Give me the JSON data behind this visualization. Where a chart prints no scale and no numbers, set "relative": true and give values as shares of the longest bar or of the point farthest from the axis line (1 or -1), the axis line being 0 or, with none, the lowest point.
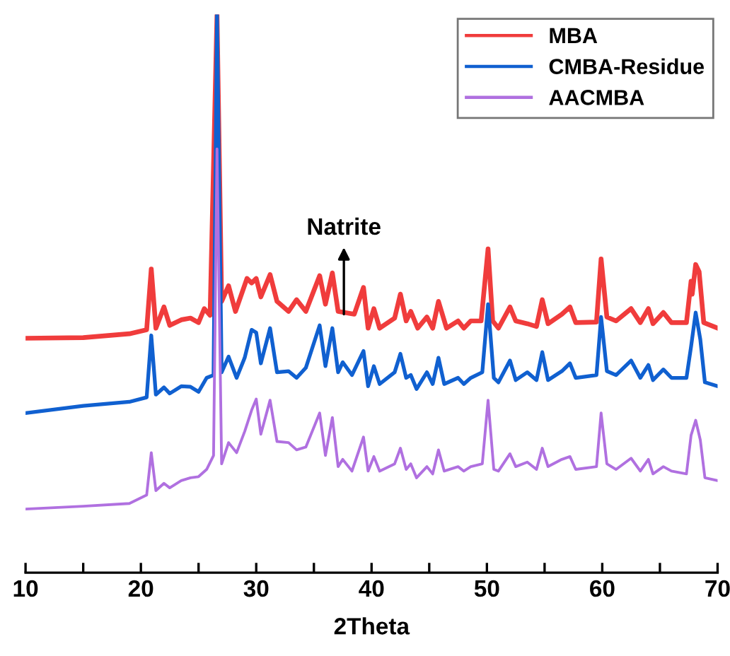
{
  "chart_data": {
    "type": "line",
    "relative": true,
    "xlabel": "2Theta",
    "xlim": [
      10,
      70
    ],
    "xticks": [
      10,
      {
        "value": 15,
        "label": null
      },
      20,
      {
        "value": 25,
        "label": null
      },
      30,
      {
        "value": 35,
        "label": null
      },
      40,
      {
        "value": 45,
        "label": null
      },
      50,
      {
        "value": 55,
        "label": null
      },
      60,
      {
        "value": 65,
        "label": null
      },
      70
    ],
    "legend": "top right",
    "grid": false,
    "marker": "none",
    "line_style": "solid",
    "annotations": [
      {
        "text": "Natrite",
        "x": 37.6,
        "y": 0.463
      }
    ],
    "series": [
      {
        "name": "MBA",
        "color": "#f03c3c",
        "x": [
          10,
          15,
          19,
          20.5,
          20.9,
          21.3,
          22,
          22.5,
          23.5,
          24.3,
          25,
          25.5,
          26,
          26.6,
          27,
          27.6,
          28.2,
          29.2,
          29.6,
          30,
          30.4,
          31.2,
          31.8,
          32.8,
          33.5,
          34.3,
          35.5,
          36,
          36.6,
          37.1,
          38.5,
          39.3,
          39.7,
          40.2,
          40.7,
          42,
          42.5,
          43,
          43.4,
          44,
          44.8,
          45.3,
          45.8,
          46.5,
          47.5,
          48,
          48.6,
          49.5,
          50.1,
          50.5,
          51,
          52,
          52.5,
          53.5,
          54.3,
          54.8,
          55.3,
          56.5,
          57.2,
          57.7,
          59.5,
          59.9,
          60.4,
          61.2,
          62.5,
          63.3,
          64,
          64.4,
          65.3,
          66,
          67.3,
          67.7,
          67.8,
          68.1,
          68.4,
          68.8,
          70
        ],
        "values": [
          0.42,
          0.421,
          0.428,
          0.435,
          0.544,
          0.438,
          0.476,
          0.443,
          0.453,
          0.456,
          0.448,
          0.473,
          0.461,
          1,
          0.486,
          0.514,
          0.468,
          0.527,
          0.519,
          0.527,
          0.494,
          0.534,
          0.486,
          0.468,
          0.489,
          0.468,
          0.532,
          0.481,
          0.537,
          0.468,
          0.463,
          0.511,
          0.438,
          0.473,
          0.438,
          0.456,
          0.499,
          0.451,
          0.468,
          0.438,
          0.458,
          0.438,
          0.486,
          0.438,
          0.451,
          0.438,
          0.451,
          0.451,
          0.58,
          0.451,
          0.438,
          0.476,
          0.451,
          0.446,
          0.441,
          0.489,
          0.446,
          0.463,
          0.476,
          0.448,
          0.449,
          0.562,
          0.458,
          0.451,
          0.473,
          0.448,
          0.473,
          0.446,
          0.466,
          0.448,
          0.448,
          0.522,
          0.499,
          0.552,
          0.539,
          0.448,
          0.438
        ]
      },
      {
        "name": "CMBA-Residue",
        "color": "#1060d0",
        "x": [
          10,
          15,
          19,
          20.5,
          20.9,
          21.3,
          22,
          22.5,
          23.5,
          24.3,
          25,
          25.7,
          26.3,
          26.6,
          27,
          27.6,
          28.3,
          29,
          29.6,
          30,
          30.4,
          31.2,
          31.8,
          32.8,
          33.5,
          34.3,
          35.5,
          36,
          36.6,
          37.1,
          37.5,
          38.3,
          39.3,
          39.7,
          40.2,
          40.7,
          42,
          42.5,
          43,
          43.4,
          43.9,
          44.8,
          45.3,
          45.8,
          46.3,
          47.5,
          48,
          48.6,
          49.6,
          50.1,
          50.6,
          51,
          52,
          52.5,
          53.5,
          54.3,
          54.8,
          55.3,
          56.5,
          57.2,
          57.7,
          59.5,
          59.9,
          60.4,
          61.2,
          62.5,
          63.3,
          64,
          64.4,
          65.3,
          66,
          67.3,
          67.7,
          68.1,
          68.5,
          68.9,
          70
        ],
        "values": [
          0.286,
          0.299,
          0.306,
          0.314,
          0.425,
          0.319,
          0.332,
          0.321,
          0.334,
          0.333,
          0.324,
          0.349,
          0.354,
          1,
          0.359,
          0.387,
          0.349,
          0.385,
          0.435,
          0.43,
          0.375,
          0.438,
          0.359,
          0.361,
          0.349,
          0.367,
          0.443,
          0.37,
          0.438,
          0.359,
          0.377,
          0.354,
          0.397,
          0.334,
          0.37,
          0.338,
          0.359,
          0.392,
          0.349,
          0.354,
          0.329,
          0.359,
          0.338,
          0.385,
          0.338,
          0.349,
          0.338,
          0.349,
          0.359,
          0.481,
          0.349,
          0.341,
          0.38,
          0.345,
          0.359,
          0.345,
          0.395,
          0.345,
          0.361,
          0.375,
          0.349,
          0.354,
          0.458,
          0.361,
          0.354,
          0.38,
          0.349,
          0.372,
          0.345,
          0.364,
          0.349,
          0.349,
          0.405,
          0.466,
          0.418,
          0.341,
          0.334
        ]
      },
      {
        "name": "AACMBA",
        "color": "#b070e0",
        "x": [
          10,
          15,
          19,
          20.5,
          20.9,
          21.3,
          22,
          22.5,
          23.5,
          24.3,
          25,
          25.7,
          26.3,
          26.6,
          27,
          27.6,
          28.3,
          29,
          29.6,
          30,
          30.4,
          31.2,
          31.8,
          32.8,
          33.5,
          34.3,
          35.5,
          36,
          36.6,
          37.1,
          37.5,
          38.3,
          39.3,
          39.7,
          40.2,
          40.7,
          42,
          42.5,
          43,
          43.4,
          43.9,
          44.8,
          45.3,
          45.8,
          46.3,
          47.5,
          48,
          48.6,
          49.6,
          50.1,
          50.6,
          51,
          52,
          52.5,
          53.5,
          54.3,
          54.8,
          55.3,
          56.5,
          57.2,
          57.7,
          59.5,
          59.9,
          60.4,
          61.2,
          62.5,
          63.3,
          64,
          64.4,
          65.3,
          66,
          67.3,
          67.7,
          68.1,
          68.5,
          68.9,
          70
        ],
        "values": [
          0.114,
          0.119,
          0.124,
          0.139,
          0.215,
          0.147,
          0.16,
          0.152,
          0.165,
          0.17,
          0.172,
          0.185,
          0.21,
          0.759,
          0.195,
          0.233,
          0.215,
          0.253,
          0.291,
          0.311,
          0.248,
          0.309,
          0.235,
          0.233,
          0.22,
          0.225,
          0.286,
          0.21,
          0.278,
          0.19,
          0.203,
          0.182,
          0.243,
          0.182,
          0.208,
          0.182,
          0.195,
          0.223,
          0.185,
          0.195,
          0.17,
          0.19,
          0.177,
          0.22,
          0.182,
          0.19,
          0.182,
          0.19,
          0.195,
          0.309,
          0.185,
          0.182,
          0.213,
          0.19,
          0.198,
          0.185,
          0.223,
          0.19,
          0.203,
          0.208,
          0.185,
          0.19,
          0.286,
          0.195,
          0.185,
          0.205,
          0.182,
          0.203,
          0.177,
          0.19,
          0.182,
          0.177,
          0.246,
          0.273,
          0.238,
          0.17,
          0.165
        ]
      }
    ]
  }
}
